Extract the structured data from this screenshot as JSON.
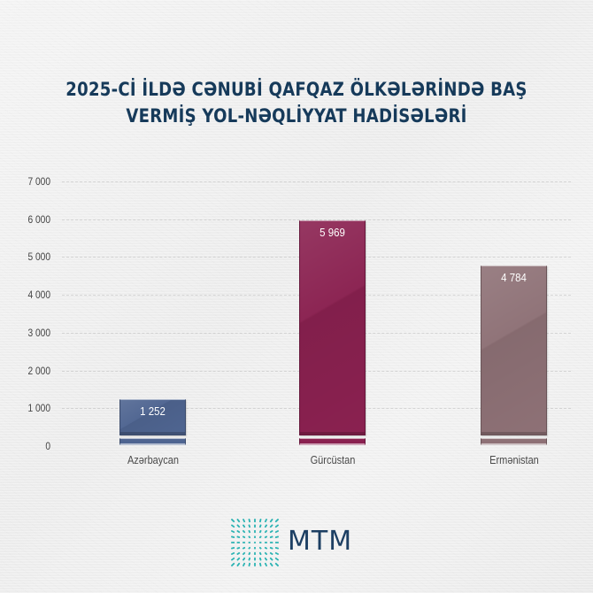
{
  "title": {
    "line1": "2025-Cİ İLDƏ CƏNUBİ QAFQAZ ÖLKƏLƏRİNDƏ BAŞ",
    "line2": "VERMİŞ YOL-NƏQLİYYAT HADİSƏLƏRİ"
  },
  "chart_data": {
    "type": "bar",
    "title": "2025-ci ildə Cənubi Qafqaz ölkələrində baş vermiş yol-nəqliyyat hadisələri",
    "categories": [
      "Azərbaycan",
      "Gürcüstan",
      "Ermənistan"
    ],
    "values": [
      1252,
      5969,
      4784
    ],
    "value_labels": [
      "1 252",
      "5 969",
      "4 784"
    ],
    "colors": [
      "#4f6591",
      "#8a2150",
      "#8e7176"
    ],
    "xlabel": "",
    "ylabel": "",
    "ylim": [
      0,
      7000
    ],
    "yticks": [
      0,
      1000,
      2000,
      3000,
      4000,
      5000,
      6000,
      7000
    ],
    "ytick_labels": [
      "0",
      "1 000",
      "2 000",
      "3 000",
      "4 000",
      "5 000",
      "6 000",
      "7 000"
    ],
    "grid": true,
    "legend": null
  },
  "logo": {
    "text": "MTM",
    "icon": "mtm-radial-grid-icon",
    "color": "#2bb3b3",
    "text_color": "#1d3f63"
  }
}
